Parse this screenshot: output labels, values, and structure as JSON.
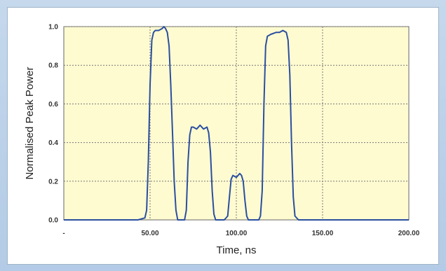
{
  "chart_data": {
    "type": "line",
    "title": "",
    "xlabel": "Time, ns",
    "ylabel": "Normalised Peak Power",
    "xlim": [
      0,
      200
    ],
    "ylim": [
      0,
      1.0
    ],
    "x_ticks": [
      0,
      50,
      100,
      150,
      200
    ],
    "x_tick_labels": [
      "-",
      "50.00",
      "100.00",
      "150.00",
      "200.00"
    ],
    "y_ticks": [
      0,
      0.2,
      0.4,
      0.6,
      0.8,
      1.0
    ],
    "y_tick_labels": [
      "0.0",
      "0.2",
      "0.4",
      "0.6",
      "0.8",
      "1.0"
    ],
    "grid": true,
    "legend": "none",
    "plot_background": "#fffbd1",
    "line_color": "#2b4fa0",
    "series": [
      {
        "x": [
          0,
          43,
          47,
          48,
          49,
          50,
          51,
          52,
          53,
          55,
          57,
          58,
          59,
          60,
          61,
          62,
          63,
          64,
          65,
          66,
          68,
          70,
          71,
          72,
          73,
          74,
          75,
          77,
          79,
          81,
          83,
          84,
          85,
          86,
          87,
          88,
          90,
          93,
          95,
          96,
          97,
          98,
          100,
          102,
          103,
          104,
          105,
          106,
          107,
          110,
          113,
          114,
          115,
          116,
          117,
          118,
          120,
          123,
          125,
          127,
          129,
          130,
          131,
          132,
          133,
          134,
          136,
          150,
          200
        ],
        "y": [
          0,
          0,
          0.01,
          0.05,
          0.3,
          0.7,
          0.93,
          0.97,
          0.98,
          0.98,
          0.99,
          1.0,
          0.99,
          0.97,
          0.9,
          0.7,
          0.45,
          0.2,
          0.05,
          0.0,
          0.0,
          0.0,
          0.05,
          0.3,
          0.44,
          0.48,
          0.48,
          0.47,
          0.49,
          0.47,
          0.48,
          0.45,
          0.35,
          0.15,
          0.03,
          0.0,
          0.0,
          0.0,
          0.02,
          0.12,
          0.21,
          0.23,
          0.22,
          0.24,
          0.23,
          0.2,
          0.1,
          0.02,
          0.0,
          0.0,
          0.0,
          0.02,
          0.15,
          0.6,
          0.9,
          0.95,
          0.96,
          0.97,
          0.97,
          0.98,
          0.97,
          0.93,
          0.75,
          0.4,
          0.12,
          0.02,
          0.0,
          0.0,
          0.0
        ]
      }
    ]
  }
}
